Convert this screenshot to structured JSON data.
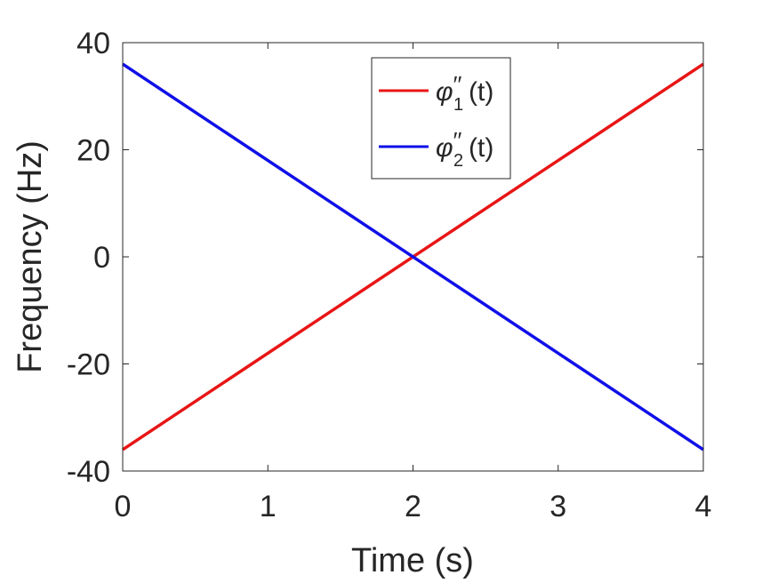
{
  "chart_data": {
    "type": "line",
    "xlabel": "Time (s)",
    "ylabel": "Frequency (Hz)",
    "xlim": [
      0,
      4
    ],
    "ylim": [
      -40,
      40
    ],
    "xticks": [
      0,
      1,
      2,
      3,
      4
    ],
    "yticks": [
      -40,
      -20,
      0,
      20,
      40
    ],
    "grid": false,
    "legend": {
      "placement": "top-center",
      "boxed": true
    },
    "series": [
      {
        "name": "φ″1(t)",
        "name_symbol": "φ",
        "name_prime": "′′",
        "name_sub": "1",
        "name_arg": "(t)",
        "color": "#e81515",
        "x": [
          0,
          4
        ],
        "y": [
          -36,
          36
        ]
      },
      {
        "name": "φ″2(t)",
        "name_symbol": "φ",
        "name_prime": "′′",
        "name_sub": "2",
        "name_arg": "(t)",
        "color": "#1010e8",
        "x": [
          0,
          4
        ],
        "y": [
          36,
          -36
        ]
      }
    ]
  }
}
